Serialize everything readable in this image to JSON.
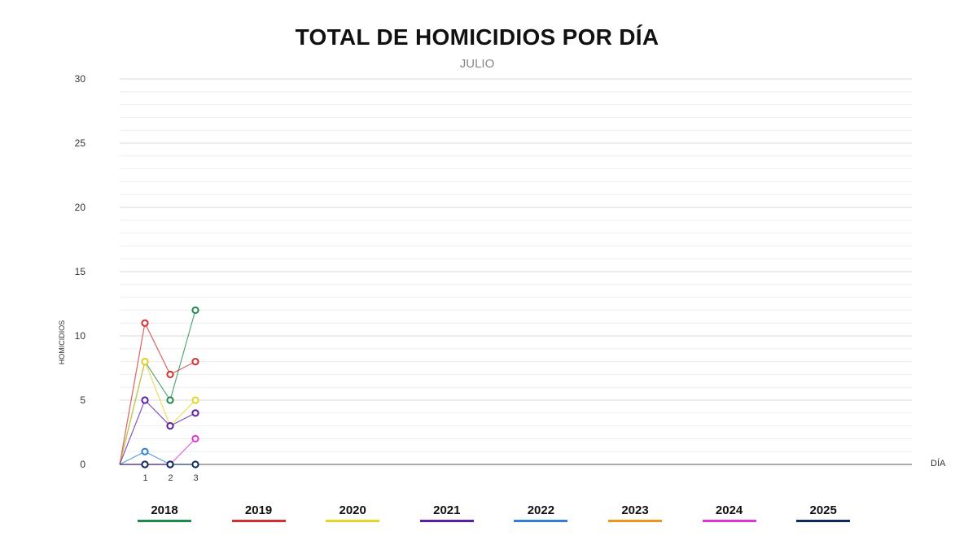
{
  "chart_data": {
    "type": "line",
    "title": "TOTAL DE HOMICIDIOS POR DÍA",
    "subtitle": "JULIO",
    "xlabel": "DÍA",
    "ylabel": "HOMICIDIOS",
    "x": [
      1,
      2,
      3
    ],
    "xlim": [
      0,
      31
    ],
    "ylim": [
      0,
      30
    ],
    "yticks": [
      0,
      5,
      10,
      15,
      20,
      25,
      30
    ],
    "grid": true,
    "legend_position": "bottom",
    "series": [
      {
        "name": "2018",
        "color": "#1a8a4a",
        "values": [
          8,
          5,
          12
        ]
      },
      {
        "name": "2019",
        "color": "#d62d2d",
        "values": [
          11,
          7,
          8
        ]
      },
      {
        "name": "2020",
        "color": "#e6d32a",
        "values": [
          8,
          3,
          5
        ]
      },
      {
        "name": "2021",
        "color": "#5a1fa8",
        "values": [
          5,
          3,
          4
        ]
      },
      {
        "name": "2022",
        "color": "#2f7fd8",
        "values": [
          1,
          0,
          null
        ]
      },
      {
        "name": "2023",
        "color": "#f0921e",
        "values": [
          null,
          null,
          null
        ]
      },
      {
        "name": "2024",
        "color": "#e033d8",
        "values": [
          0,
          0,
          2
        ]
      },
      {
        "name": "2025",
        "color": "#0d2b5e",
        "values": [
          0,
          0,
          0
        ]
      }
    ]
  }
}
